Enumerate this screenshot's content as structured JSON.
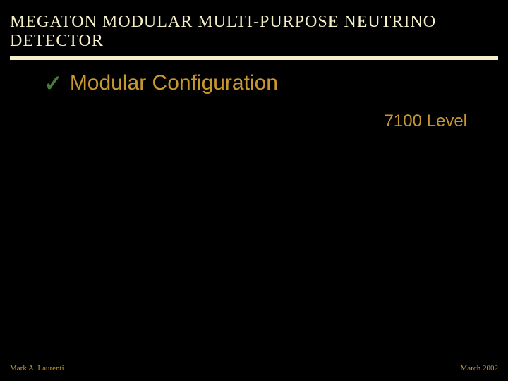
{
  "header": {
    "title": "MEGATON MODULAR MULTI-PURPOSE NEUTRINO DETECTOR"
  },
  "subtitle": {
    "checkmark": "✓",
    "text": "Modular Configuration"
  },
  "level": {
    "label": "7100 Level"
  },
  "footer": {
    "left": "Mark A. Laurenti",
    "right": "March 2002"
  },
  "colors": {
    "background": "#000000",
    "header_text": "#f5f0c8",
    "divider": "#f5f0c8",
    "accent_text": "#c89830",
    "checkmark": "#4a7a3a"
  }
}
